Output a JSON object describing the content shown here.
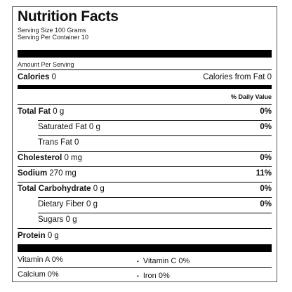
{
  "label": {
    "title": "Nutrition Facts",
    "serving_size": "Serving Size 100 Grams",
    "servings_per_container": "Serving Per Container 10",
    "amount_per_serving": "Amount Per Serving",
    "calories_label": "Calories",
    "calories_value": "0",
    "calories_from_fat": "Calories from Fat 0",
    "daily_value_header": "% Daily Value",
    "nutrients": [
      {
        "name": "Total Fat",
        "amount": "0 g",
        "pct": "0%"
      },
      {
        "name": "Saturated Fat",
        "amount": "0 g",
        "pct": "0%"
      },
      {
        "name": "Trans Fat",
        "amount": "0",
        "pct": ""
      },
      {
        "name": "Cholesterol",
        "amount": "0 mg",
        "pct": "0%"
      },
      {
        "name": "Sodium",
        "amount": "270 mg",
        "pct": "11%"
      },
      {
        "name": "Total Carbohydrate",
        "amount": "0 g",
        "pct": "0%"
      },
      {
        "name": "Dietary Fiber",
        "amount": "0 g",
        "pct": "0%"
      },
      {
        "name": "Sugars",
        "amount": "0 g",
        "pct": ""
      },
      {
        "name": "Protein",
        "amount": "0 g",
        "pct": ""
      }
    ],
    "vitamins": [
      {
        "left": "Vitamin A 0%",
        "right": "Vitamin C 0%"
      },
      {
        "left": "Calcium 0%",
        "right": "Iron 0%"
      }
    ],
    "bullet": "•"
  }
}
